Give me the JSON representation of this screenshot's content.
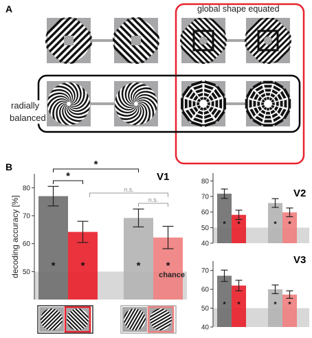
{
  "panel_a": {
    "label": "A",
    "global_shape_label": "global shape equated",
    "radially_balanced_label": [
      "radially",
      "balanced"
    ],
    "colors": {
      "red_outline": "#e8222d",
      "black_outline": "#000000",
      "tile_bg": "#a7a7a9"
    }
  },
  "panel_b": {
    "label": "B",
    "chance_label": "chance",
    "sig_star": "*",
    "ns_label": "n.s.",
    "colors": {
      "dark_gray": "#707070",
      "red": "#e8222d",
      "light_gray": "#b4b4b4",
      "pink": "#f08080",
      "chance_band": "#d8d8d8"
    }
  },
  "chart_data": [
    {
      "type": "bar",
      "title": "V1",
      "ylabel": "decoding accuracy [%]",
      "ylim": [
        40,
        85
      ],
      "yticks": [
        50,
        60,
        70,
        80
      ],
      "chance": 50,
      "categories": [
        "dark gray",
        "red",
        "light gray",
        "pink"
      ],
      "values": [
        77,
        64.2,
        69.2,
        62.2
      ],
      "errors": [
        3.5,
        3.8,
        3.2,
        4.0
      ],
      "significant_vs_chance": [
        true,
        true,
        true,
        true
      ]
    },
    {
      "type": "bar",
      "title": "V2",
      "ylim": [
        40,
        85
      ],
      "yticks": [
        40,
        50,
        60,
        70,
        80
      ],
      "chance": 50,
      "categories": [
        "dark gray",
        "red",
        "light gray",
        "pink"
      ],
      "values": [
        71.8,
        58.2,
        65.8,
        59.8
      ],
      "errors": [
        3.0,
        3.0,
        2.8,
        2.8
      ],
      "significant_vs_chance": [
        true,
        true,
        true,
        true
      ]
    },
    {
      "type": "bar",
      "title": "V3",
      "ylim": [
        40,
        75
      ],
      "yticks": [
        40,
        50,
        60,
        70
      ],
      "chance": 50,
      "categories": [
        "dark gray",
        "red",
        "light gray",
        "pink"
      ],
      "values": [
        67.2,
        62.0,
        60.0,
        57.2
      ],
      "errors": [
        3.0,
        2.8,
        2.3,
        2.0
      ],
      "significant_vs_chance": [
        true,
        true,
        true,
        true
      ]
    }
  ]
}
